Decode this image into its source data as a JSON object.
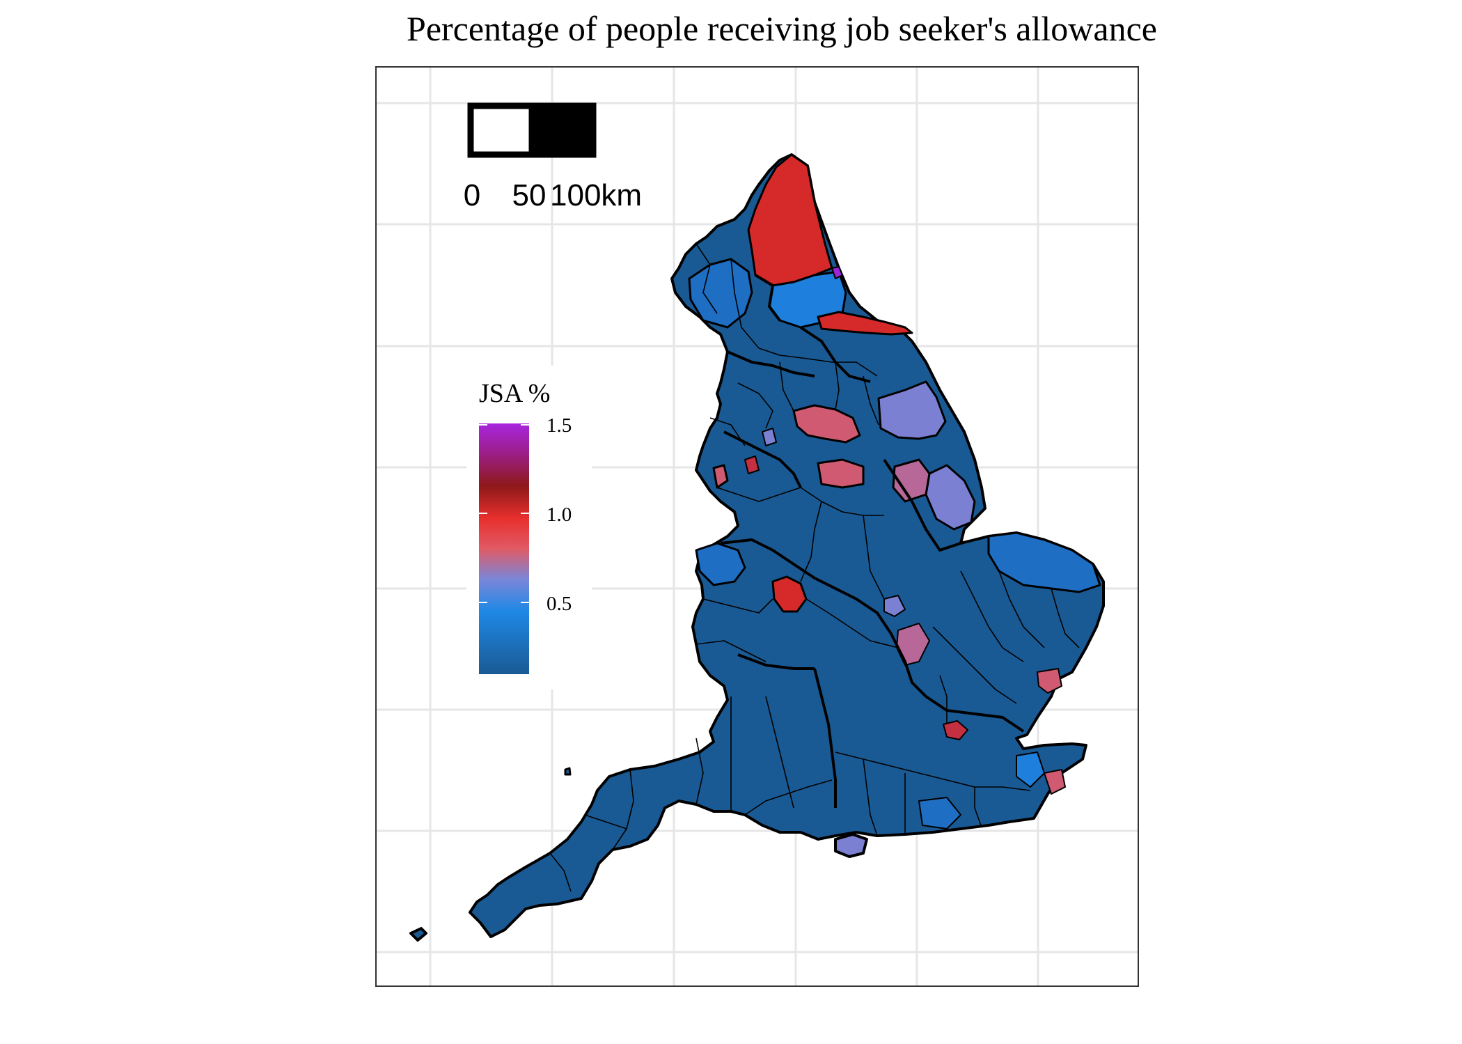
{
  "title": "Percentage of people receiving job seeker's allowance",
  "legend": {
    "title": "JSA %",
    "ticks": [
      "1.5",
      "1.0",
      "0.5"
    ],
    "tick_values": [
      1.5,
      1.0,
      0.5
    ],
    "range": [
      0.0,
      1.5
    ],
    "colors": [
      "#1a5a94",
      "#1e88e5",
      "#7a86d8",
      "#e05a66",
      "#e8302e",
      "#8e1919",
      "#9c1e86",
      "#a826e0"
    ]
  },
  "scale_bar": {
    "labels": [
      "0",
      "50",
      "100km"
    ]
  },
  "colors": {
    "low": "#1a5a94",
    "mid_blue": "#1e7fdc",
    "lavender": "#7b80d3",
    "pink": "#d05a72",
    "red": "#d62a2a",
    "purple": "#9a25d8"
  },
  "grid": true
}
